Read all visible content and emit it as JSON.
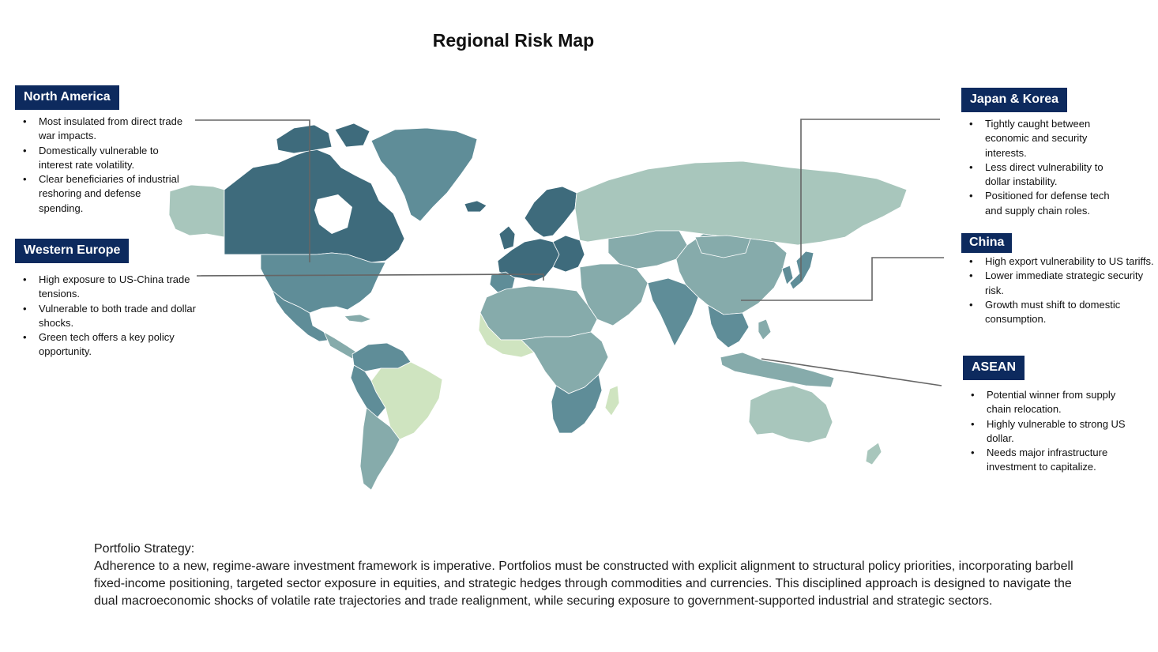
{
  "title": "Regional Risk Map",
  "colors": {
    "tag_bg": "#0d2a5e",
    "risk_high": "#3e6b7c",
    "risk_med_high": "#5f8d98",
    "risk_med": "#86abab",
    "risk_med_low": "#a8c6bc",
    "risk_low": "#cfe4c0",
    "connector": "#666666"
  },
  "regions": {
    "north_america": {
      "name": "North America",
      "bullets": [
        "Most insulated from direct trade war impacts.",
        "Domestically vulnerable to interest rate volatility.",
        "Clear beneficiaries of industrial reshoring and defense spending."
      ]
    },
    "western_europe": {
      "name": "Western Europe",
      "bullets": [
        "High exposure to US-China trade tensions.",
        "Vulnerable to both trade and dollar shocks.",
        "Green tech offers a key policy opportunity."
      ]
    },
    "japan_korea": {
      "name": "Japan & Korea",
      "bullets": [
        "Tightly caught between economic and security interests.",
        "Less direct vulnerability to dollar instability.",
        "Positioned for defense tech and supply chain roles."
      ]
    },
    "china": {
      "name": "China",
      "bullets": [
        "High export vulnerability to US tariffs.",
        "Lower immediate strategic security risk.",
        "Growth must shift to domestic consumption."
      ]
    },
    "asean": {
      "name": "ASEAN",
      "bullets": [
        "Potential winner from supply chain relocation.",
        "Highly vulnerable to strong US dollar.",
        "Needs major infrastructure investment to capitalize."
      ]
    }
  },
  "strategy": {
    "label": "Portfolio Strategy:",
    "text": "Adherence to a new, regime-aware investment framework is imperative. Portfolios must be constructed with explicit alignment to structural policy priorities, incorporating barbell fixed-income positioning, targeted sector exposure in equities, and strategic hedges through commodities and currencies. This disciplined approach is designed to navigate the dual macroeconomic shocks of volatile rate trajectories and trade realignment, while securing exposure to government-supported industrial and strategic sectors."
  }
}
